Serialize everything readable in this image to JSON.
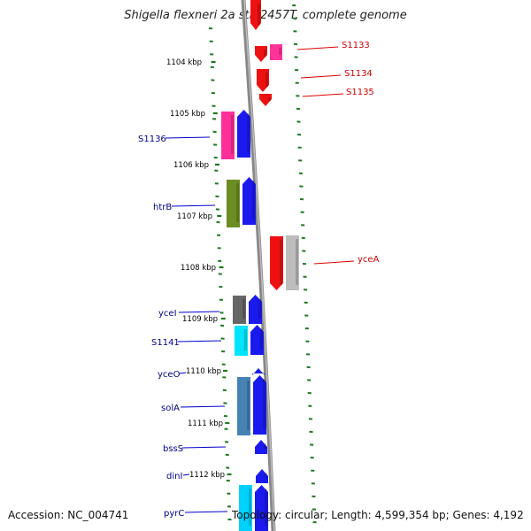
{
  "title": "Shigella flexneri 2a str. 2457T, complete genome",
  "footer": {
    "accession_label": "Accession:",
    "accession": "NC_004741",
    "topology_label": "Topology:",
    "topology": "circular;",
    "length_label": "Length:",
    "length": "4,599,354 bp;",
    "genes_label": "Genes:",
    "genes": "4,192"
  },
  "colors": {
    "forward": "#1a1aee",
    "reverse": "#ee1111",
    "tick": "#1f7a1f",
    "backbone": "#888888"
  },
  "ruler": [
    "1104 kbp",
    "1105 kbp",
    "1106 kbp",
    "1107 kbp",
    "1108 kbp",
    "1109 kbp",
    "1110 kbp",
    "1111 kbp",
    "1112 kbp"
  ],
  "forward_gene_labels": [
    "S1136",
    "htrB",
    "yceI",
    "S1141",
    "yceO",
    "solA",
    "bssS",
    "dinI",
    "pyrC"
  ],
  "reverse_gene_labels": [
    "S1133",
    "S1134",
    "S1135",
    "yceA"
  ]
}
